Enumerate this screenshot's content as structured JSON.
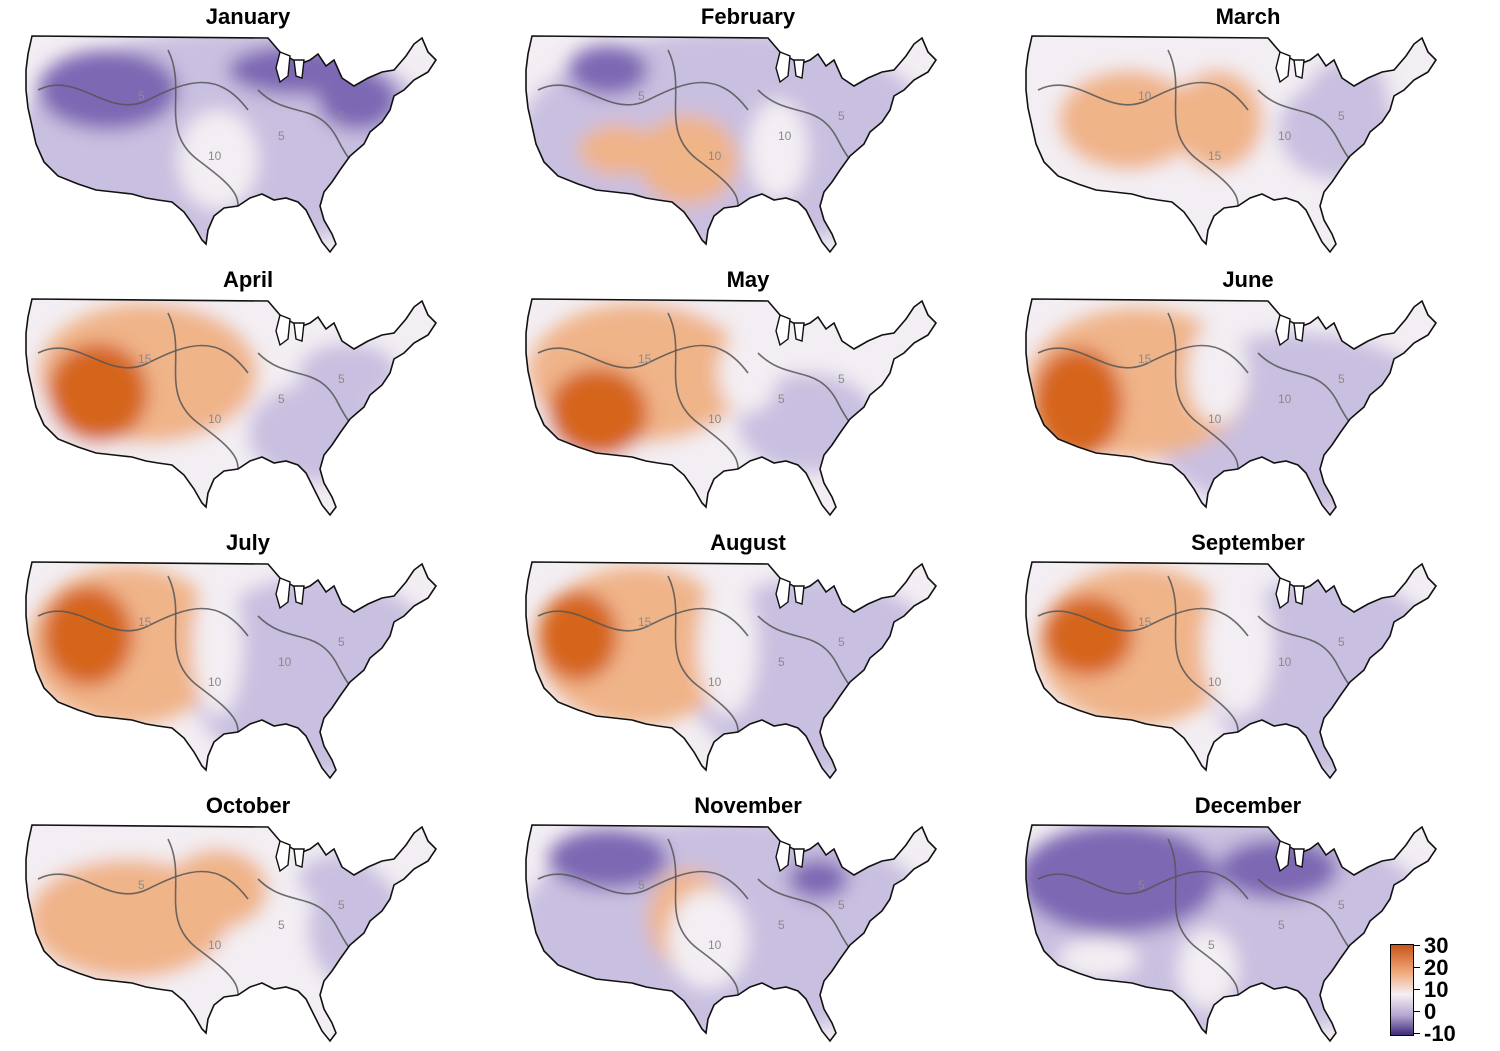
{
  "figure": {
    "panels": [
      {
        "month": "January",
        "contour_labels": [
          "5",
          "10",
          "5",
          "5"
        ]
      },
      {
        "month": "February",
        "contour_labels": [
          "5",
          "10",
          "10",
          "5"
        ]
      },
      {
        "month": "March",
        "contour_labels": [
          "10",
          "15",
          "10",
          "5"
        ]
      },
      {
        "month": "April",
        "contour_labels": [
          "15",
          "10",
          "5",
          "5"
        ]
      },
      {
        "month": "May",
        "contour_labels": [
          "15",
          "10",
          "5",
          "5"
        ]
      },
      {
        "month": "June",
        "contour_labels": [
          "15",
          "10",
          "10",
          "5"
        ]
      },
      {
        "month": "July",
        "contour_labels": [
          "15",
          "10",
          "10",
          "5"
        ]
      },
      {
        "month": "August",
        "contour_labels": [
          "15",
          "10",
          "5",
          "5"
        ]
      },
      {
        "month": "September",
        "contour_labels": [
          "15",
          "10",
          "10",
          "5"
        ]
      },
      {
        "month": "October",
        "contour_labels": [
          "5",
          "10",
          "5",
          "5"
        ]
      },
      {
        "month": "November",
        "contour_labels": [
          "5",
          "10",
          "5",
          "5"
        ]
      },
      {
        "month": "December",
        "contour_labels": [
          "5",
          "5",
          "5",
          "5"
        ]
      }
    ],
    "colors": {
      "hot": "#d6651f",
      "warm": "#f0b489",
      "neutral": "#f3eef3",
      "cool": "#c9bfe0",
      "cold": "#7d68b4",
      "outline": "#111111",
      "contour": "#555555"
    }
  },
  "legend": {
    "labels": [
      "30",
      "20",
      "10",
      "0",
      "-10"
    ]
  }
}
